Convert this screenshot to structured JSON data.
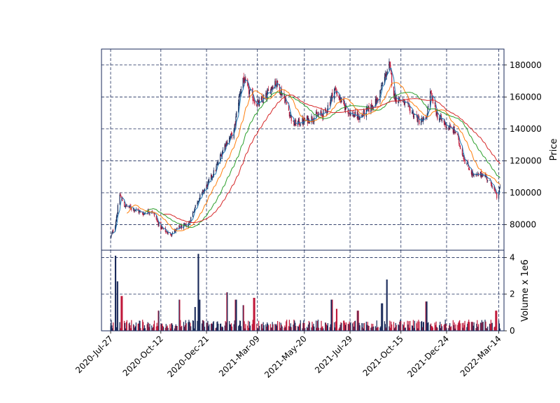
{
  "chart_data": [
    {
      "type": "candlestick",
      "panel": "price",
      "ylabel": "Price",
      "ylim": [
        64000,
        190000
      ],
      "yticks": [
        80000,
        100000,
        120000,
        140000,
        160000,
        180000
      ],
      "xlim_dates": [
        "2020-07-13",
        "2022-03-22"
      ],
      "xticks": [
        "2020-Jul-27",
        "2020-Oct-12",
        "2020-Dec-21",
        "2021-Mar-09",
        "2021-May-20",
        "2021-Jul-29",
        "2021-Oct-15",
        "2021-Dec-24",
        "2022-Mar-14"
      ],
      "grid": true,
      "colors": {
        "up": "#1a2a5a",
        "down": "#c0193a",
        "axis": "#1a2a5a",
        "ma5": "#1f77b4",
        "ma20": "#ff7f0e",
        "ma40": "#2ca02c",
        "ma60": "#d62728"
      },
      "close_anchors": [
        [
          "2020-07-27",
          72000
        ],
        [
          "2020-08-03",
          80000
        ],
        [
          "2020-08-10",
          99000
        ],
        [
          "2020-08-17",
          92000
        ],
        [
          "2020-08-31",
          90000
        ],
        [
          "2020-09-14",
          87000
        ],
        [
          "2020-09-28",
          89000
        ],
        [
          "2020-10-05",
          83000
        ],
        [
          "2020-10-12",
          78000
        ],
        [
          "2020-10-26",
          74000
        ],
        [
          "2020-11-09",
          78000
        ],
        [
          "2020-11-23",
          80000
        ],
        [
          "2020-12-07",
          95000
        ],
        [
          "2020-12-21",
          104000
        ],
        [
          "2021-01-04",
          115000
        ],
        [
          "2021-01-18",
          130000
        ],
        [
          "2021-02-01",
          138000
        ],
        [
          "2021-02-08",
          158000
        ],
        [
          "2021-02-15",
          172000
        ],
        [
          "2021-02-22",
          165000
        ],
        [
          "2021-03-09",
          155000
        ],
        [
          "2021-03-22",
          160000
        ],
        [
          "2021-04-05",
          170000
        ],
        [
          "2021-04-19",
          160000
        ],
        [
          "2021-05-03",
          143000
        ],
        [
          "2021-05-20",
          145000
        ],
        [
          "2021-06-07",
          148000
        ],
        [
          "2021-06-21",
          150000
        ],
        [
          "2021-07-05",
          165000
        ],
        [
          "2021-07-19",
          155000
        ],
        [
          "2021-07-29",
          150000
        ],
        [
          "2021-08-12",
          147000
        ],
        [
          "2021-08-26",
          152000
        ],
        [
          "2021-09-09",
          158000
        ],
        [
          "2021-09-20",
          172000
        ],
        [
          "2021-09-27",
          180000
        ],
        [
          "2021-10-05",
          160000
        ],
        [
          "2021-10-15",
          158000
        ],
        [
          "2021-10-29",
          152000
        ],
        [
          "2021-11-12",
          145000
        ],
        [
          "2021-11-22",
          145000
        ],
        [
          "2021-11-29",
          162000
        ],
        [
          "2021-12-10",
          148000
        ],
        [
          "2021-12-24",
          142000
        ],
        [
          "2022-01-07",
          138000
        ],
        [
          "2022-01-21",
          120000
        ],
        [
          "2022-02-04",
          110000
        ],
        [
          "2022-02-18",
          112000
        ],
        [
          "2022-03-04",
          105000
        ],
        [
          "2022-03-11",
          97000
        ],
        [
          "2022-03-16",
          103000
        ]
      ],
      "moving_averages": [
        {
          "period": 5,
          "color": "#1f77b4"
        },
        {
          "period": 20,
          "color": "#ff7f0e"
        },
        {
          "period": 40,
          "color": "#2ca02c"
        },
        {
          "period": 60,
          "color": "#d62728"
        }
      ]
    },
    {
      "type": "bar",
      "panel": "volume",
      "ylabel": "Volume x 1e6",
      "ylim": [
        0,
        4.4
      ],
      "yticks": [
        0,
        2,
        4
      ],
      "base_volume_1e6": 0.35,
      "volume_spikes_1e6": [
        [
          "2020-08-03",
          4.1
        ],
        [
          "2020-08-07",
          2.7
        ],
        [
          "2020-08-13",
          1.9
        ],
        [
          "2020-10-09",
          1.1
        ],
        [
          "2020-11-09",
          1.7
        ],
        [
          "2020-12-04",
          1.3
        ],
        [
          "2020-12-09",
          4.2
        ],
        [
          "2020-12-11",
          1.7
        ],
        [
          "2021-01-22",
          2.1
        ],
        [
          "2021-02-04",
          1.7
        ],
        [
          "2021-02-15",
          1.4
        ],
        [
          "2021-03-04",
          1.8
        ],
        [
          "2021-07-01",
          1.7
        ],
        [
          "2021-07-09",
          1.2
        ],
        [
          "2021-08-10",
          1.1
        ],
        [
          "2021-09-24",
          2.8
        ],
        [
          "2021-09-16",
          1.5
        ],
        [
          "2021-11-23",
          1.6
        ],
        [
          "2022-03-10",
          1.1
        ]
      ]
    }
  ]
}
